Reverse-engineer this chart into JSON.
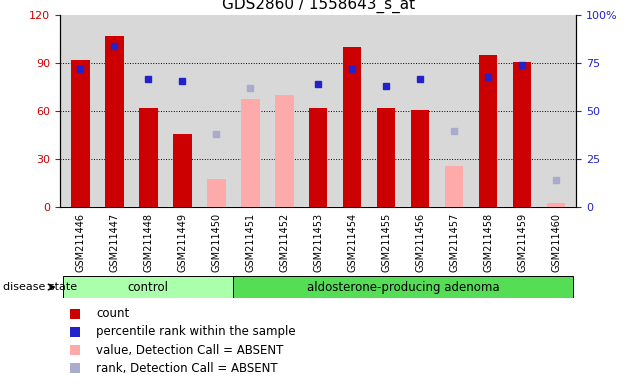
{
  "title": "GDS2860 / 1558643_s_at",
  "samples": [
    "GSM211446",
    "GSM211447",
    "GSM211448",
    "GSM211449",
    "GSM211450",
    "GSM211451",
    "GSM211452",
    "GSM211453",
    "GSM211454",
    "GSM211455",
    "GSM211456",
    "GSM211457",
    "GSM211458",
    "GSM211459",
    "GSM211460"
  ],
  "count": [
    92,
    107,
    62,
    46,
    null,
    null,
    null,
    62,
    100,
    62,
    61,
    null,
    95,
    91,
    null
  ],
  "percentile_rank": [
    72,
    84,
    67,
    66,
    null,
    null,
    null,
    64,
    72,
    63,
    67,
    null,
    68,
    74,
    null
  ],
  "value_absent": [
    null,
    null,
    null,
    null,
    18,
    68,
    70,
    null,
    null,
    null,
    null,
    26,
    null,
    null,
    3
  ],
  "rank_absent": [
    null,
    null,
    null,
    null,
    38,
    62,
    null,
    null,
    null,
    null,
    null,
    40,
    null,
    null,
    14
  ],
  "control_group": [
    0,
    1,
    2,
    3,
    4
  ],
  "adenoma_group": [
    5,
    6,
    7,
    8,
    9,
    10,
    11,
    12,
    13,
    14
  ],
  "ylim": [
    0,
    120
  ],
  "yticks_left": [
    0,
    30,
    60,
    90,
    120
  ],
  "yticks_right": [
    0,
    25,
    50,
    75,
    100
  ],
  "color_count": "#cc0000",
  "color_rank": "#2222cc",
  "color_value_absent": "#ffaaaa",
  "color_rank_absent": "#aaaacc",
  "legend_items": [
    "count",
    "percentile rank within the sample",
    "value, Detection Call = ABSENT",
    "rank, Detection Call = ABSENT"
  ]
}
